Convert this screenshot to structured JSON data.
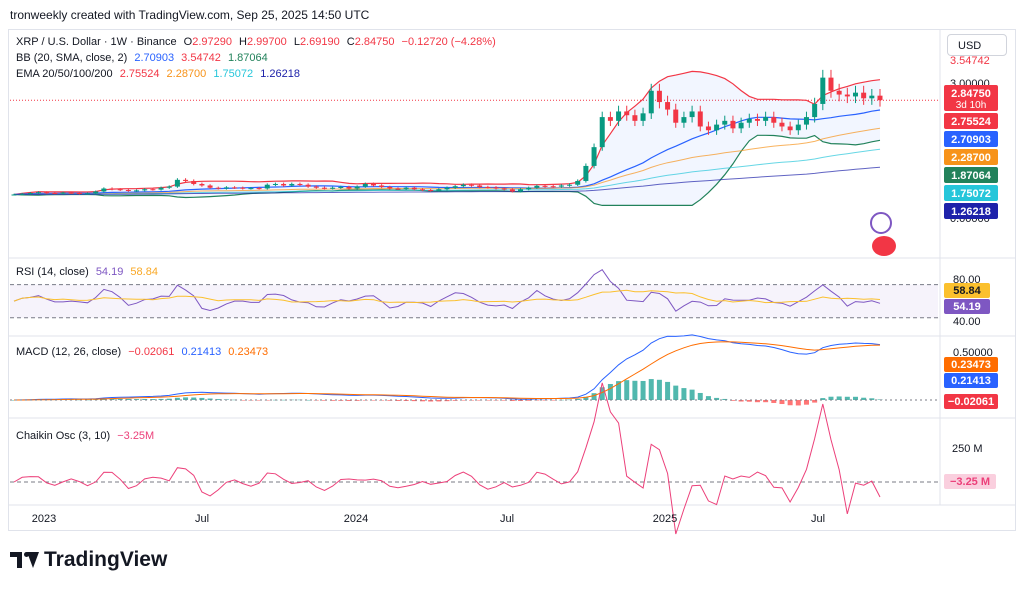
{
  "header": {
    "text": "tronweekly created with TradingView.com, Sep 25, 2025 14:50 UTC"
  },
  "currency_button": "USD",
  "main_legend": {
    "symbol": "XRP / U.S. Dollar · 1W · Binance",
    "ohlc": {
      "o_label": "O",
      "o": "2.97290",
      "h_label": "H",
      "h": "2.99700",
      "l_label": "L",
      "l": "2.69190",
      "c_label": "C",
      "c": "2.84750",
      "change": "−0.12720 (−4.28%)"
    },
    "bb": {
      "label": "BB (20, SMA, close, 2)",
      "basis": "2.70903",
      "upper": "3.54742",
      "lower": "1.87064"
    },
    "ema": {
      "label": "EMA 20/50/100/200",
      "e20": "2.75524",
      "e50": "2.28700",
      "e100": "1.75072",
      "e200": "1.26218"
    }
  },
  "rsi_legend": {
    "label": "RSI (14, close)",
    "rsi": "54.19",
    "ma": "58.84"
  },
  "macd_legend": {
    "label": "MACD (12, 26, close)",
    "hist": "−0.02061",
    "macd": "0.21413",
    "signal": "0.23473"
  },
  "chaikin_legend": {
    "label": "Chaikin Osc (3, 10)",
    "value": "−3.25M"
  },
  "price_axis": {
    "top_partial": "3.54742",
    "gridlabels": [
      "3.00000",
      "0.00000"
    ],
    "badges": [
      {
        "text": "2.84750",
        "bg": "#f23645",
        "sub": "3d 10h"
      },
      {
        "text": "2.75524",
        "bg": "#f23645"
      },
      {
        "text": "2.70903",
        "bg": "#2962ff"
      },
      {
        "text": "2.28700",
        "bg": "#f7931a"
      },
      {
        "text": "1.87064",
        "bg": "#22825b"
      },
      {
        "text": "1.75072",
        "bg": "#26c6da"
      },
      {
        "text": "1.26218",
        "bg": "#1e22aa"
      }
    ]
  },
  "rsi_axis": {
    "l80": "80.00",
    "l40": "40.00",
    "b1": "58.84",
    "b2": "54.19"
  },
  "macd_axis": {
    "l1": "0.50000",
    "b1": "0.23473",
    "b2": "0.21413",
    "b3": "−0.02061"
  },
  "chaikin_axis": {
    "l1": "250 M",
    "b1": "−3.25 M"
  },
  "time_axis": [
    "2023",
    "Jul",
    "2024",
    "Jul",
    "2025",
    "Jul"
  ],
  "logo_text": "TradingView",
  "colors": {
    "up": "#089981",
    "down": "#f23645",
    "bb_basis": "#2962ff",
    "bb_band": "#f23645",
    "bb_lower": "#22825b",
    "ema50": "#f7931a",
    "ema100": "#26c6da",
    "ema200": "#1e22aa",
    "rsi": "#7e57c2",
    "rsi_ma": "#fbc02d",
    "macd": "#2962ff",
    "signal": "#ff6d00",
    "chaikin": "#ec407a"
  },
  "chart_data": {
    "type": "line",
    "title": "XRP / U.S. Dollar · 1W · Binance",
    "x_ticks": [
      "2023",
      "Jul",
      "2024",
      "Jul",
      "2025",
      "Jul"
    ],
    "price_weekly_close_approx": [
      0.34,
      0.36,
      0.38,
      0.4,
      0.38,
      0.37,
      0.39,
      0.38,
      0.36,
      0.37,
      0.42,
      0.5,
      0.48,
      0.46,
      0.44,
      0.45,
      0.48,
      0.47,
      0.52,
      0.55,
      0.73,
      0.7,
      0.62,
      0.58,
      0.52,
      0.5,
      0.53,
      0.52,
      0.5,
      0.51,
      0.5,
      0.6,
      0.62,
      0.58,
      0.62,
      0.6,
      0.55,
      0.52,
      0.5,
      0.52,
      0.54,
      0.5,
      0.55,
      0.62,
      0.58,
      0.54,
      0.5,
      0.49,
      0.52,
      0.48,
      0.46,
      0.44,
      0.48,
      0.52,
      0.56,
      0.6,
      0.58,
      0.54,
      0.53,
      0.5,
      0.48,
      0.42,
      0.48,
      0.52,
      0.57,
      0.56,
      0.55,
      0.58,
      0.6,
      0.7,
      1.1,
      1.6,
      2.4,
      2.3,
      2.55,
      2.45,
      2.3,
      2.5,
      3.1,
      2.8,
      2.6,
      2.25,
      2.4,
      2.55,
      2.15,
      2.05,
      2.2,
      2.3,
      2.1,
      2.25,
      2.35,
      2.3,
      2.4,
      2.25,
      2.15,
      2.05,
      2.2,
      2.4,
      2.75,
      3.45,
      3.1,
      3.0,
      2.95,
      3.05,
      2.9,
      2.97,
      2.85
    ],
    "bb": {
      "basis": 2.70903,
      "upper": 3.54742,
      "lower": 1.87064
    },
    "ema": {
      "ema20": 2.75524,
      "ema50": 2.287,
      "ema100": 1.75072,
      "ema200": 1.26218
    },
    "rsi": {
      "value": 54.19,
      "ma": 58.84,
      "bands": [
        40,
        80
      ]
    },
    "macd": {
      "histogram": -0.02061,
      "macd": 0.21413,
      "signal": 0.23473
    },
    "chaikin_osc": {
      "value_millions": -3.25
    }
  }
}
